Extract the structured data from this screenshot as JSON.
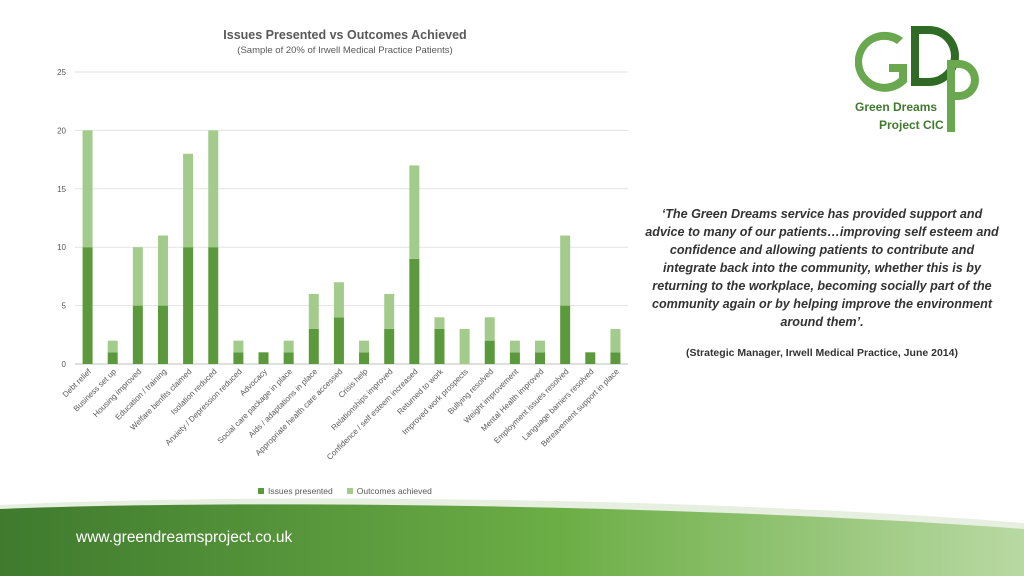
{
  "chart_data": {
    "type": "bar",
    "stacked": true,
    "title": "Issues Presented vs Outcomes Achieved",
    "subtitle": "(Sample of 20% of Irwell Medical Practice Patients)",
    "categories": [
      "Debt relief",
      "Business set up",
      "Housing improved",
      "Education / training",
      "Welfare benfits claimed",
      "Isolation reduced",
      "Anxiety / Depression reduced",
      "Advocacy",
      "Social care package in place",
      "Aids / adaptations in place",
      "Appropriate health care accessed",
      "Crisis help",
      "Relationships improved",
      "Confidence / self esteem increased",
      "Returned to work",
      "Improved work prospects",
      "Bullying resolved",
      "Weight improvement",
      "Mental Health improved",
      "Employment issues resolved",
      "Language barriers resolved",
      "Bereavement support in place"
    ],
    "series": [
      {
        "name": "Issues presented",
        "color": "#5a9a3c",
        "values": [
          10,
          1,
          5,
          5,
          10,
          10,
          1,
          1,
          1,
          3,
          4,
          1,
          3,
          9,
          3,
          0,
          2,
          1,
          1,
          5,
          1,
          1
        ]
      },
      {
        "name": "Outcomes achieved",
        "color": "#a3cb8b",
        "values": [
          10,
          1,
          5,
          6,
          8,
          10,
          1,
          0,
          1,
          3,
          3,
          1,
          3,
          8,
          1,
          3,
          2,
          1,
          1,
          6,
          0,
          2
        ]
      }
    ],
    "ylim": [
      0,
      25
    ],
    "yticks": [
      0,
      5,
      10,
      15,
      20,
      25
    ],
    "grid": true,
    "legend_position": "bottom"
  },
  "logo": {
    "letters": "GDP",
    "line1": "Green Dreams",
    "line2": "Project CIC"
  },
  "quote": "‘The Green Dreams service has provided support and advice to many of our patients…improving self esteem and confidence and allowing patients to contribute and integrate back into the community, whether this is by returning to the workplace, becoming socially part of the community again or by helping improve the environment around them’.",
  "attribution": "(Strategic Manager, Irwell Medical Practice, June 2014)",
  "footer": {
    "url": "www.greendreamsproject.co.uk"
  },
  "colors": {
    "issues": "#5a9a3c",
    "outcomes": "#a3cb8b",
    "logo_dark": "#3f7a2e",
    "logo_light": "#6aa84f"
  }
}
